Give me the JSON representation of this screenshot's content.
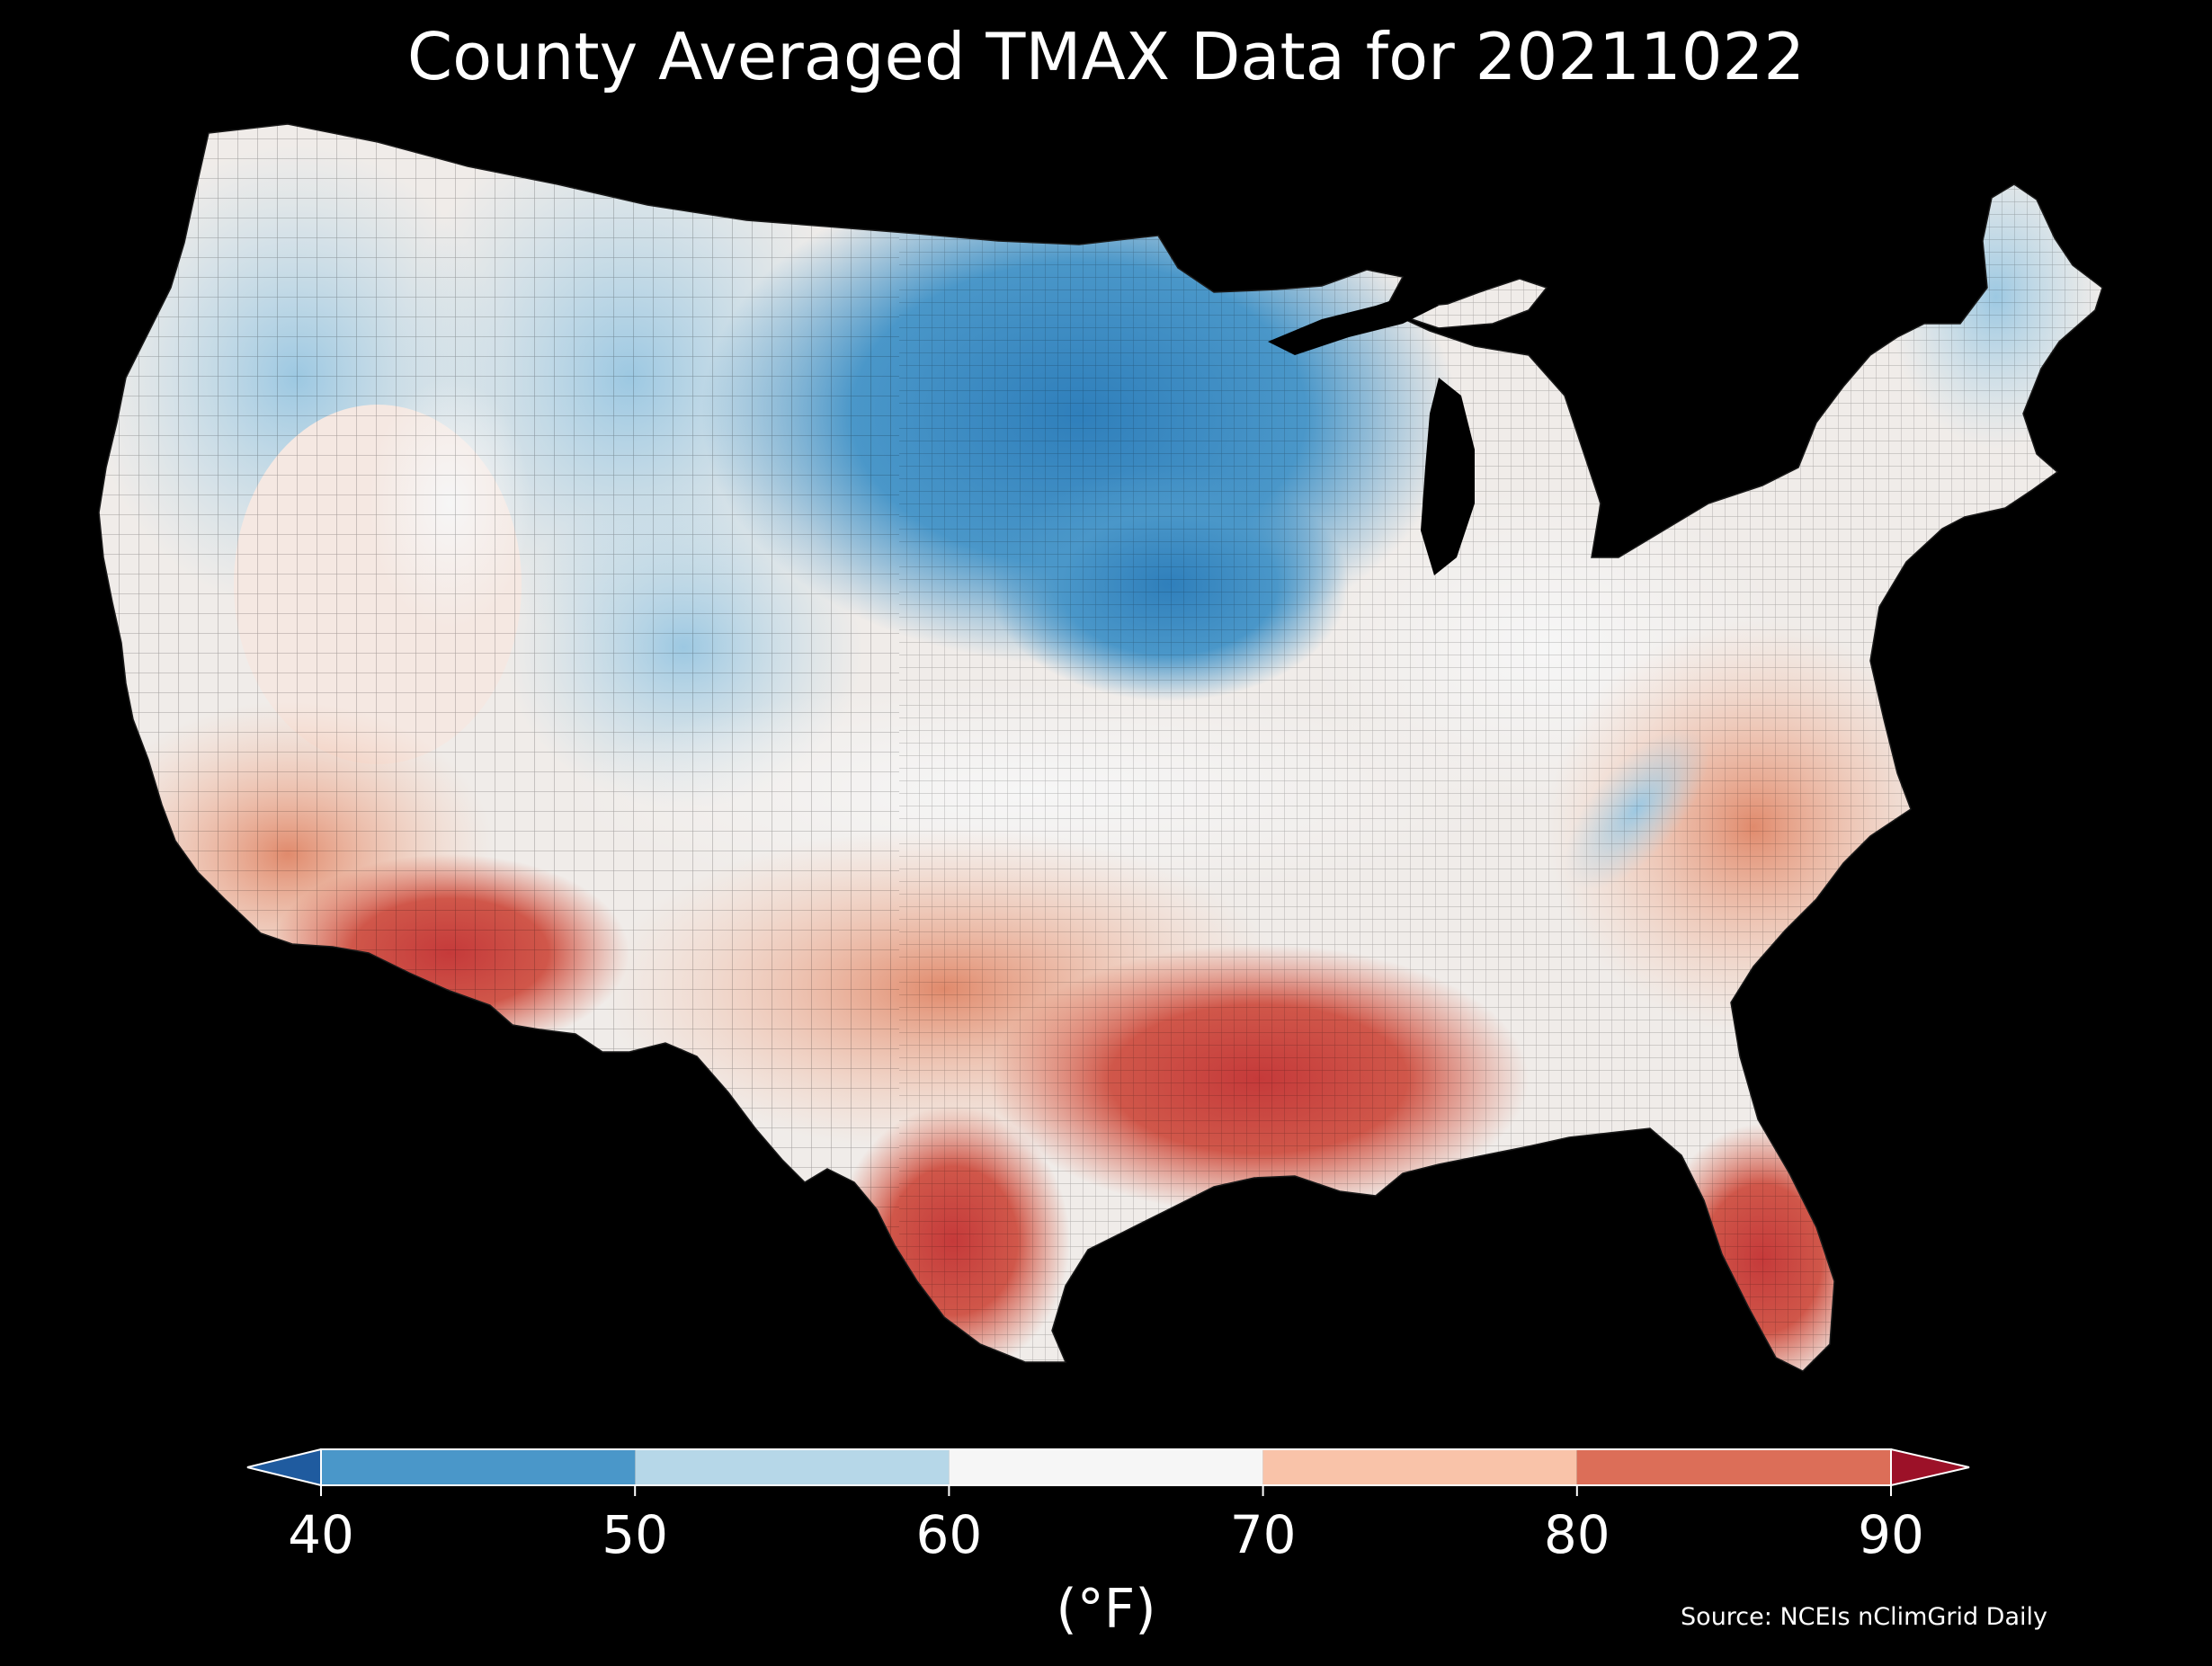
{
  "title": "County Averaged TMAX Data for 20211022",
  "source": "Source: NCEIs nClimGrid Daily",
  "colorbar": {
    "unit": "(°F)",
    "ticks": [
      "40",
      "50",
      "60",
      "70",
      "80",
      "90"
    ],
    "min": 40,
    "max": 90,
    "extend": "both",
    "bins": [
      {
        "from": 40,
        "to": 50,
        "color": "#4a97c9"
      },
      {
        "from": 50,
        "to": 60,
        "color": "#b6d7e8"
      },
      {
        "from": 60,
        "to": 70,
        "color": "#f6f6f6"
      },
      {
        "from": 70,
        "to": 80,
        "color": "#f9c3a9"
      },
      {
        "from": 80,
        "to": 90,
        "color": "#dc6e58"
      }
    ],
    "under_color": "#1f5b9f",
    "over_color": "#9c1128"
  },
  "map": {
    "region": "Contiguous United States",
    "variable": "TMAX",
    "regions": [
      {
        "name": "Pacific Northwest coast",
        "tmax_bin": "50-60"
      },
      {
        "name": "Northern Rockies",
        "tmax_bin": "50-60"
      },
      {
        "name": "Great Basin",
        "tmax_bin": "60-70"
      },
      {
        "name": "California coast",
        "tmax_bin": "70-80"
      },
      {
        "name": "Desert Southwest",
        "tmax_bin": "80-90"
      },
      {
        "name": "Northern Plains / Upper Midwest",
        "tmax_bin": "40-50"
      },
      {
        "name": "Central Plains",
        "tmax_bin": "60-70"
      },
      {
        "name": "Southern Plains",
        "tmax_bin": "70-80"
      },
      {
        "name": "South Texas",
        "tmax_bin": "80-90"
      },
      {
        "name": "Gulf Coast",
        "tmax_bin": "80-90"
      },
      {
        "name": "Florida",
        "tmax_bin": "80-90"
      },
      {
        "name": "Southeast",
        "tmax_bin": "70-80"
      },
      {
        "name": "Appalachians",
        "tmax_bin": "60-70"
      },
      {
        "name": "Ohio Valley / Great Lakes",
        "tmax_bin": "60-70"
      },
      {
        "name": "Mid-Atlantic",
        "tmax_bin": "70-80"
      },
      {
        "name": "Northern New England",
        "tmax_bin": "50-60"
      }
    ]
  }
}
